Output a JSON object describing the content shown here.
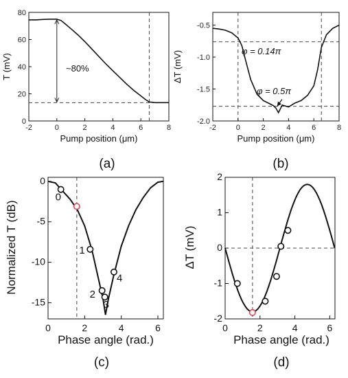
{
  "chart_data": [
    {
      "id": "a",
      "type": "line",
      "panel_label": "(a)",
      "xlabel": "Pump position (μm)",
      "ylabel": "T (mV)",
      "xlim": [
        -2,
        8
      ],
      "ylim": [
        0,
        80
      ],
      "xticks": [
        "-2",
        "0",
        "2",
        "4",
        "6",
        "8"
      ],
      "yticks": [
        "0",
        "20",
        "40",
        "60",
        "80"
      ],
      "x": [
        -2,
        -1.5,
        -1,
        -0.5,
        0,
        0.3,
        0.6,
        1,
        1.5,
        2,
        2.5,
        3,
        3.5,
        4,
        4.5,
        5,
        5.5,
        6,
        6.3,
        6.6,
        7,
        7.5,
        8
      ],
      "y": [
        74.5,
        74.5,
        74.8,
        75,
        75,
        74,
        71.5,
        68,
        63.5,
        58.5,
        53,
        47.5,
        42,
        37,
        32,
        27,
        22.5,
        18.5,
        16,
        14,
        13.5,
        13.5,
        13.5
      ],
      "hlines": [
        13.5
      ],
      "vlines": [
        6.6
      ],
      "annotation": "~80%",
      "arrow": {
        "x": 0,
        "y_from": 75,
        "y_to": 13.5
      }
    },
    {
      "id": "b",
      "type": "line",
      "panel_label": "(b)",
      "xlabel": "Pump position (μm)",
      "ylabel": "ΔT (mV)",
      "xlim": [
        -2,
        8
      ],
      "ylim": [
        -2.0,
        -0.3
      ],
      "xticks": [
        "-2",
        "0",
        "2",
        "4",
        "6",
        "8"
      ],
      "yticks": [
        "-0.5",
        "-1.0",
        "-1.5",
        "-2.0"
      ],
      "ytick_values": [
        -0.5,
        -1.0,
        -1.5,
        -2.0
      ],
      "x": [
        -2,
        -1.5,
        -1,
        -0.5,
        0,
        0.3,
        0.6,
        1,
        1.5,
        2,
        2.5,
        2.8,
        3,
        3.2,
        3.5,
        4,
        4.5,
        5,
        5.5,
        6,
        6.3,
        6.6,
        7,
        7.5,
        8
      ],
      "y": [
        -0.55,
        -0.56,
        -0.58,
        -0.62,
        -0.7,
        -0.82,
        -1.05,
        -1.35,
        -1.58,
        -1.68,
        -1.73,
        -1.76,
        -1.8,
        -1.87,
        -1.75,
        -1.78,
        -1.72,
        -1.68,
        -1.6,
        -1.45,
        -1.2,
        -0.85,
        -0.65,
        -0.55,
        -0.5
      ],
      "hlines": [
        -0.76,
        -1.77
      ],
      "vlines": [
        0,
        6.6
      ],
      "annotations": [
        "φ = 0.14π",
        "φ = 0.5π"
      ]
    },
    {
      "id": "c",
      "type": "line",
      "panel_label": "(c)",
      "xlabel": "Phase angle (rad.)",
      "ylabel": "Normalized T (dB)",
      "xlim": [
        0,
        6.3
      ],
      "ylim": [
        -17,
        0.5
      ],
      "xticks": [
        "0",
        "2",
        "4",
        "6"
      ],
      "yticks": [
        "0",
        "-5",
        "-10",
        "-15"
      ],
      "ytick_values": [
        0,
        -5,
        -10,
        -15
      ],
      "curve_x": [
        0,
        0.4,
        0.8,
        1.2,
        1.6,
        2.0,
        2.4,
        2.7,
        3.0,
        3.14,
        3.3,
        3.6,
        4.0,
        4.4,
        4.8,
        5.2,
        5.6,
        6.0,
        6.28
      ],
      "curve_y": [
        0,
        -0.2,
        -1.2,
        -2.2,
        -3.5,
        -5.5,
        -8.5,
        -11.5,
        -14.5,
        -16.5,
        -14.5,
        -11.5,
        -8.0,
        -5.5,
        -3.5,
        -2.0,
        -0.8,
        -0.1,
        0
      ],
      "points_x": [
        0.7,
        1.57,
        2.3,
        2.95,
        3.1,
        3.6
      ],
      "points_y": [
        -1,
        -3.1,
        -8.4,
        -13.5,
        -14.3,
        -11.2
      ],
      "highlight_index": 1,
      "point_labels": [
        "0",
        "1",
        "2",
        "3",
        "4"
      ],
      "vlines": [
        1.57
      ]
    },
    {
      "id": "d",
      "type": "line",
      "panel_label": "(d)",
      "xlabel": "Phase angle (rad.)",
      "ylabel": "ΔT (mV)",
      "xlim": [
        0,
        6.3
      ],
      "ylim": [
        -2,
        2
      ],
      "xticks": [
        "0",
        "2",
        "4",
        "6"
      ],
      "yticks": [
        "2",
        "1",
        "0",
        "-1",
        "-2"
      ],
      "ytick_values": [
        2,
        1,
        0,
        -1,
        -2
      ],
      "amplitude": -1.8,
      "points_x": [
        0.7,
        1.57,
        2.3,
        2.95,
        3.2,
        3.6
      ],
      "points_y": [
        -1.0,
        -1.82,
        -1.5,
        -0.8,
        0.05,
        0.5
      ],
      "highlight_index": 1,
      "hlines": [
        0
      ],
      "vlines": [
        1.57
      ]
    }
  ],
  "colors": {
    "line": "#111111",
    "highlight": "#e0454f",
    "grid": "#555555"
  }
}
